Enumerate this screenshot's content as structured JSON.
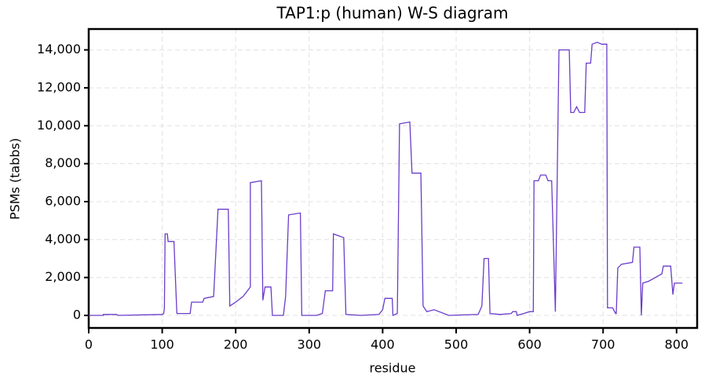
{
  "chart_data": {
    "type": "line",
    "title": "TAP1:p (human) W-S diagram",
    "xlabel": "residue",
    "ylabel": "PSMs (tabbs)",
    "xlim": [
      0,
      828
    ],
    "ylim": [
      -660,
      15100
    ],
    "xticks": [
      0,
      100,
      200,
      300,
      400,
      500,
      600,
      700,
      800
    ],
    "yticks": [
      0,
      {
        "value": 2000,
        "label": "2,000"
      },
      {
        "value": 4000,
        "label": "4,000"
      },
      {
        "value": 6000,
        "label": "6,000"
      },
      {
        "value": 8000,
        "label": "8,000"
      },
      {
        "value": 10000,
        "label": "10,000"
      },
      {
        "value": 12000,
        "label": "12,000"
      },
      {
        "value": 14000,
        "label": "14,000"
      }
    ],
    "grid": true,
    "series": [
      {
        "color": "#6a3dca",
        "x": [
          0,
          20,
          20,
          38,
          40,
          100,
          102,
          103,
          104,
          107,
          108,
          116,
          118,
          120,
          138,
          140,
          155,
          157,
          170,
          176,
          190,
          192,
          200,
          210,
          220,
          220,
          235,
          237,
          240,
          248,
          250,
          265,
          268,
          272,
          288,
          290,
          310,
          318,
          322,
          332,
          333,
          340,
          347,
          350,
          370,
          395,
          400,
          403,
          413,
          414,
          420,
          423,
          437,
          440,
          452,
          455,
          460,
          470,
          490,
          530,
          535,
          538,
          544,
          546,
          560,
          575,
          577,
          582,
          583,
          592,
          600,
          605,
          606,
          612,
          615,
          622,
          625,
          630,
          635,
          640,
          654,
          656,
          660,
          664,
          668,
          675,
          677,
          683,
          685,
          692,
          698,
          705,
          706,
          713,
          717,
          718,
          720,
          725,
          740,
          742,
          750,
          752,
          754,
          762,
          780,
          782,
          792,
          795,
          797,
          808
        ],
        "values": [
          0,
          0,
          50,
          50,
          0,
          50,
          100,
          400,
          4300,
          4300,
          3900,
          3900,
          2000,
          100,
          100,
          700,
          700,
          900,
          1000,
          5600,
          5600,
          500,
          700,
          1000,
          1500,
          7000,
          7100,
          800,
          1500,
          1500,
          0,
          0,
          1000,
          5300,
          5400,
          0,
          0,
          100,
          1300,
          1300,
          4300,
          4200,
          4100,
          50,
          0,
          50,
          300,
          900,
          900,
          0,
          100,
          10100,
          10200,
          7500,
          7500,
          500,
          200,
          300,
          0,
          50,
          500,
          3000,
          3000,
          100,
          50,
          100,
          200,
          200,
          0,
          100,
          200,
          200,
          7100,
          7100,
          7400,
          7400,
          7100,
          7100,
          200,
          14000,
          14000,
          10700,
          10700,
          11000,
          10700,
          10700,
          13300,
          13300,
          14300,
          14400,
          14300,
          14300,
          400,
          400,
          100,
          100,
          2500,
          2700,
          2800,
          3600,
          3600,
          0,
          1700,
          1800,
          2200,
          2600,
          2600,
          1100,
          1700,
          1700
        ]
      }
    ]
  }
}
